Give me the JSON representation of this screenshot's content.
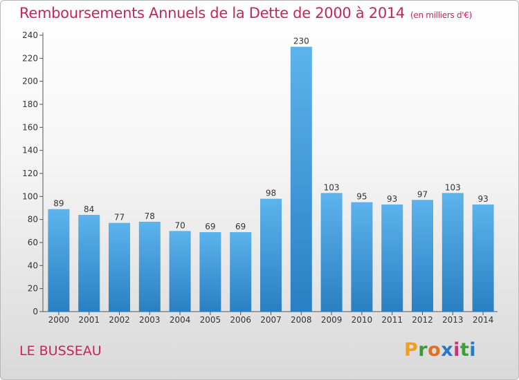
{
  "title": "Remboursements Annuels de la Dette de 2000 à 2014",
  "subtitle": "(en milliers d'€)",
  "commune": "LE BUSSEAU",
  "logo": [
    "P",
    "r",
    "o",
    "x",
    "i",
    "t",
    "i"
  ],
  "colors": {
    "title": "#c8245c",
    "bar_light": "#5db3ec",
    "bar_dark": "#2a7fc2"
  },
  "chart_data": {
    "type": "bar",
    "title": "Remboursements Annuels de la Dette de 2000 à 2014",
    "subtitle": "(en milliers d'€)",
    "xlabel": "",
    "ylabel": "",
    "categories": [
      "2000",
      "2001",
      "2002",
      "2003",
      "2004",
      "2005",
      "2006",
      "2007",
      "2008",
      "2009",
      "2010",
      "2011",
      "2012",
      "2013",
      "2014"
    ],
    "values": [
      89,
      84,
      77,
      78,
      70,
      69,
      69,
      98,
      230,
      103,
      95,
      93,
      97,
      103,
      93
    ],
    "data_labels": [
      "89",
      "84",
      "77",
      "78",
      "70",
      "69",
      "69",
      "98",
      "230",
      "103",
      "95",
      "93",
      "97",
      "103",
      "93"
    ],
    "ylim": [
      0,
      240
    ],
    "yticks": [
      0,
      20,
      40,
      60,
      80,
      100,
      120,
      140,
      160,
      180,
      200,
      220,
      240
    ],
    "grid": false,
    "legend": "none"
  }
}
